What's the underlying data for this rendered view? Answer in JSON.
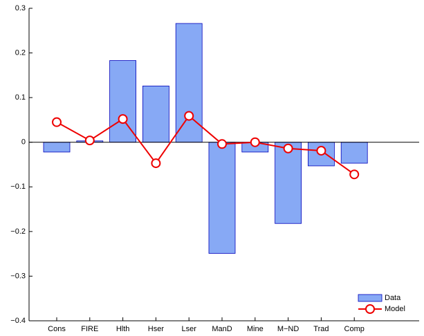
{
  "chart_data": {
    "type": "bar",
    "categories": [
      "Cons",
      "FIRE",
      "Hlth",
      "Hser",
      "Lser",
      "ManD",
      "Mine",
      "M−ND",
      "Trad",
      "Comp"
    ],
    "series": [
      {
        "name": "Data",
        "type": "bar",
        "color": "#87a9f5",
        "values": [
          -0.022,
          0.003,
          0.183,
          0.126,
          0.266,
          -0.249,
          -0.022,
          -0.182,
          -0.053,
          -0.047
        ]
      },
      {
        "name": "Model",
        "type": "line",
        "color": "#ee0000",
        "values": [
          0.045,
          0.004,
          0.052,
          -0.047,
          0.059,
          -0.004,
          0.0,
          -0.014,
          -0.019,
          -0.072
        ]
      }
    ],
    "ylim": [
      -0.4,
      0.3
    ],
    "yticks": [
      {
        "value": -0.4,
        "label": "−0.4"
      },
      {
        "value": -0.3,
        "label": "−0.3"
      },
      {
        "value": -0.2,
        "label": "−0.2"
      },
      {
        "value": -0.1,
        "label": "−0.1"
      },
      0,
      0.1,
      0.2,
      0.3
    ],
    "legend": "lower right"
  }
}
